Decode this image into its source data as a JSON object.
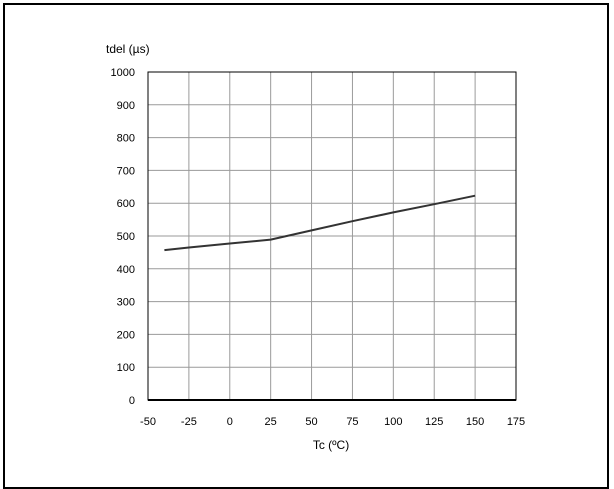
{
  "chart_data": {
    "type": "line",
    "title": "",
    "ylabel": "tdel (µs)",
    "xlabel": "Tc (ºC)",
    "xlim": [
      -50,
      175
    ],
    "ylim": [
      0,
      1000
    ],
    "xticks": [
      -50,
      -25,
      0,
      25,
      50,
      75,
      100,
      125,
      150,
      175
    ],
    "yticks": [
      0,
      100,
      200,
      300,
      400,
      500,
      600,
      700,
      800,
      900,
      1000
    ],
    "grid": true,
    "legend": "none",
    "series": [
      {
        "x": [
          -40,
          -25,
          0,
          25,
          50,
          75,
          100,
          125,
          150
        ],
        "y": [
          457,
          465,
          477,
          489,
          517,
          545,
          572,
          597,
          623
        ],
        "color": "#333333"
      }
    ]
  }
}
